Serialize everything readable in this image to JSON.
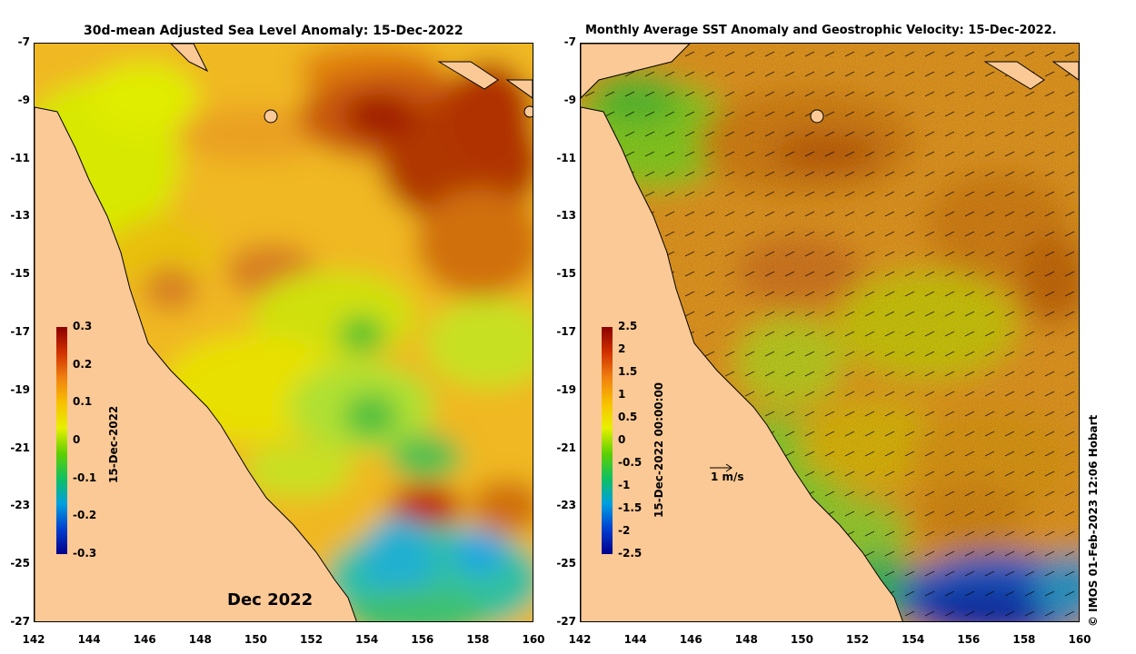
{
  "left_panel": {
    "title": "30d-mean Adjusted Sea Level Anomaly: 15-Dec-2022",
    "colorbar_label": "15-Dec-2022",
    "colorbar_ticks": [
      "0.3",
      "0.2",
      "0.1",
      "0",
      "-0.1",
      "-0.2",
      "-0.3"
    ],
    "month_label": "Dec 2022"
  },
  "right_panel": {
    "title": "Monthly Average SST Anomaly  and Geostrophic Velocity: 15-Dec-2022.",
    "colorbar_label": "15-Dec-2022 00:00:00",
    "colorbar_ticks": [
      "2.5",
      "2",
      "1.5",
      "1",
      "0.5",
      "0",
      "-0.5",
      "-1",
      "-1.5",
      "-2",
      "-2.5"
    ],
    "scale_label": "1 m/s"
  },
  "x_ticks": [
    "142",
    "144",
    "146",
    "148",
    "150",
    "152",
    "154",
    "156",
    "158",
    "160"
  ],
  "y_ticks": [
    "-7",
    "-9",
    "-11",
    "-13",
    "-15",
    "-17",
    "-19",
    "-21",
    "-23",
    "-25",
    "-27"
  ],
  "credit": "© IMOS 01-Feb-2023 12:06 Hobart",
  "colors": {
    "land": "#fbc995",
    "high": "#8b0000",
    "low": "#00008b"
  }
}
